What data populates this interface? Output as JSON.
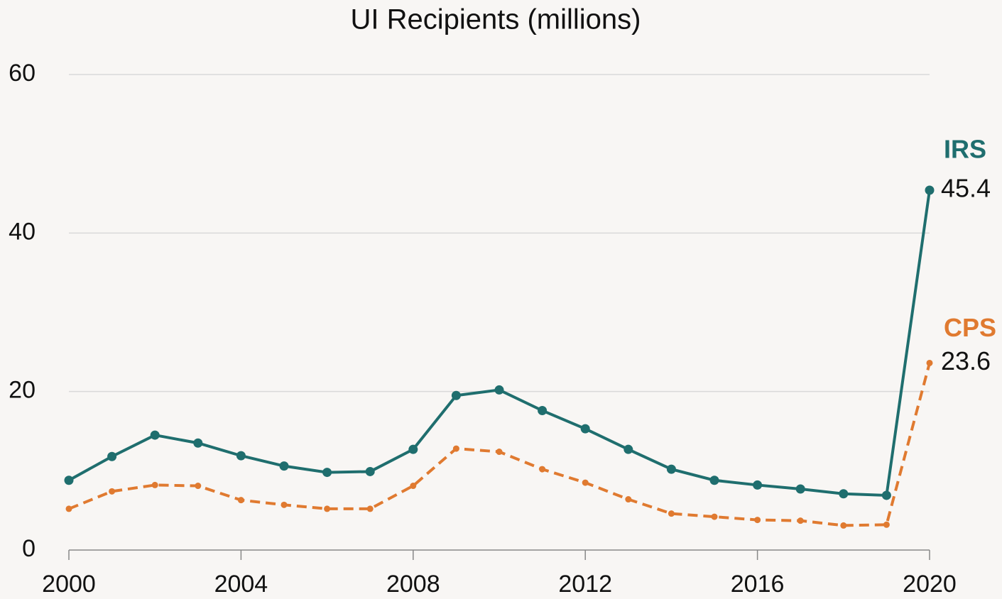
{
  "chart_data": {
    "type": "line",
    "title": "UI Recipients (millions)",
    "x": [
      2000,
      2001,
      2002,
      2003,
      2004,
      2005,
      2006,
      2007,
      2008,
      2009,
      2010,
      2011,
      2012,
      2013,
      2014,
      2015,
      2016,
      2017,
      2018,
      2019,
      2020
    ],
    "series": [
      {
        "name": "IRS",
        "color": "#1f6e6e",
        "dashed": false,
        "values": [
          8.8,
          11.8,
          14.5,
          13.5,
          11.9,
          10.6,
          9.8,
          9.9,
          12.7,
          19.5,
          20.2,
          17.6,
          15.3,
          12.7,
          10.2,
          8.8,
          8.2,
          7.7,
          7.1,
          6.9,
          45.4
        ]
      },
      {
        "name": "CPS",
        "color": "#e07a30",
        "dashed": true,
        "values": [
          5.2,
          7.4,
          8.2,
          8.1,
          6.3,
          5.7,
          5.2,
          5.2,
          8.1,
          12.8,
          12.4,
          10.2,
          8.5,
          6.4,
          4.6,
          4.2,
          3.8,
          3.7,
          3.1,
          3.2,
          23.6
        ]
      }
    ],
    "xlim": [
      2000,
      2020
    ],
    "xticks": [
      2000,
      2004,
      2008,
      2012,
      2016,
      2020
    ],
    "ylim": [
      0,
      60
    ],
    "yticks": [
      0,
      20,
      40,
      60
    ],
    "grid": true
  }
}
